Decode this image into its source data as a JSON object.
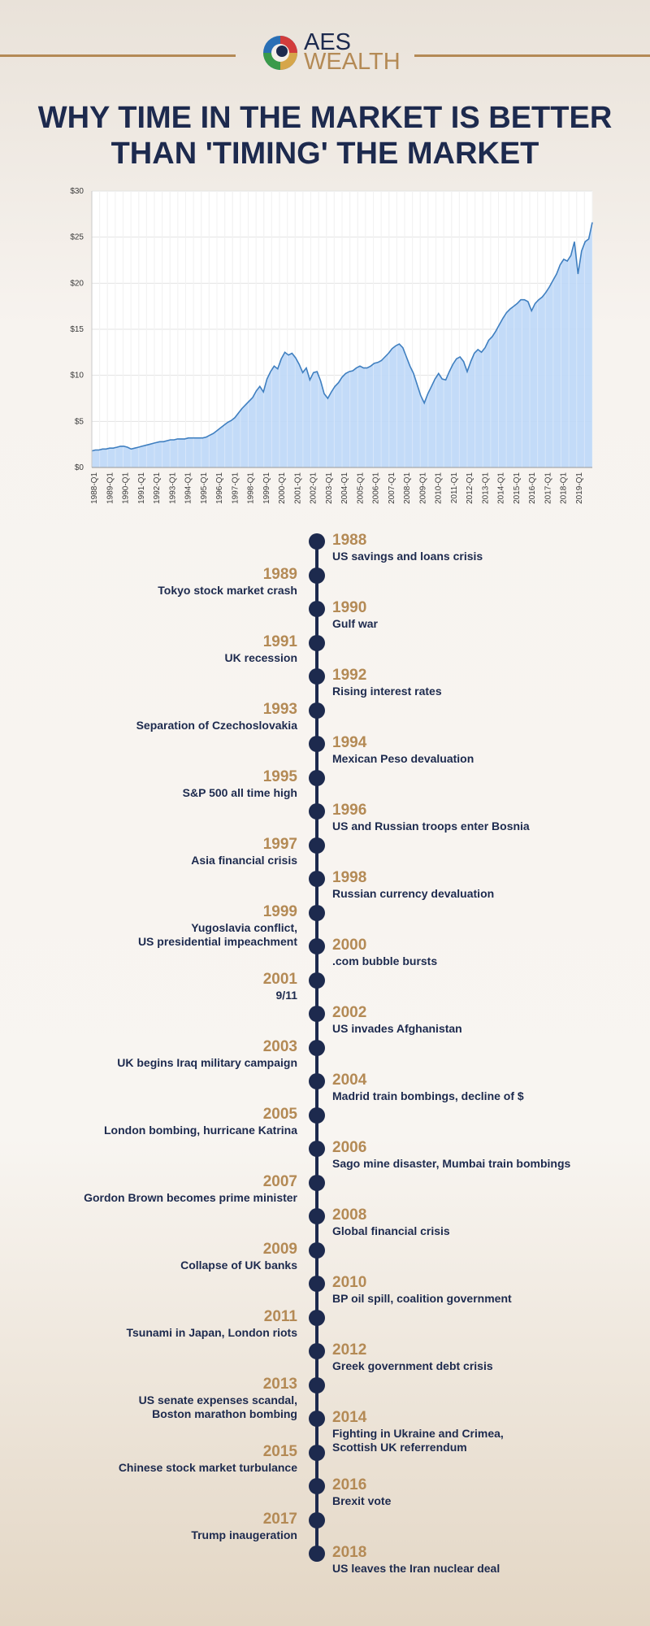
{
  "header": {
    "brand_top": "AES",
    "brand_bottom": "WEALTH",
    "title_line1": "WHY TIME IN THE MARKET IS BETTER",
    "title_line2": "THAN 'TIMING' THE MARKET"
  },
  "colors": {
    "navy": "#1d2a4e",
    "gold": "#b48a55",
    "line": "#3f7fc0",
    "fill": "#bcd7f7"
  },
  "chart_data": {
    "type": "area",
    "title": "",
    "xlabel": "",
    "ylabel": "",
    "ylim": [
      0,
      30
    ],
    "yticks": [
      "$0",
      "$5",
      "$10",
      "$15",
      "$20",
      "$25",
      "$30"
    ],
    "grid": true,
    "x_labels": [
      "1988-Q1",
      "1989-Q1",
      "1990-Q1",
      "1991-Q1",
      "1992-Q1",
      "1993-Q1",
      "1994-Q1",
      "1995-Q1",
      "1996-Q1",
      "1997-Q1",
      "1998-Q1",
      "1999-Q1",
      "2000-Q1",
      "2001-Q1",
      "2002-Q1",
      "2003-Q1",
      "2004-Q1",
      "2005-Q1",
      "2006-Q1",
      "2007-Q1",
      "2008-Q1",
      "2009-Q1",
      "2010-Q1",
      "2011-Q1",
      "2012-Q1",
      "2013-Q1",
      "2014-Q1",
      "2015-Q1",
      "2016-Q1",
      "2017-Q1",
      "2018-Q1",
      "2019-Q1"
    ],
    "series": [
      {
        "values": [
          1.8,
          1.9,
          1.9,
          2.0,
          2.0,
          2.1,
          2.1,
          2.2,
          2.3,
          2.3,
          2.2,
          2.0,
          2.1,
          2.2,
          2.3,
          2.4,
          2.5,
          2.6,
          2.7,
          2.8,
          2.8,
          2.9,
          3.0,
          3.0,
          3.1,
          3.1,
          3.1,
          3.2,
          3.2,
          3.2,
          3.2,
          3.2,
          3.3,
          3.5,
          3.7,
          4.0,
          4.3,
          4.6,
          4.9,
          5.1,
          5.4,
          5.9,
          6.4,
          6.8,
          7.2,
          7.6,
          8.3,
          8.8,
          8.2,
          9.6,
          10.4,
          11.0,
          10.7,
          11.8,
          12.5,
          12.2,
          12.4,
          11.9,
          11.2,
          10.3,
          10.8,
          9.5,
          10.3,
          10.4,
          9.4,
          8.0,
          7.5,
          8.2,
          8.8,
          9.2,
          9.8,
          10.2,
          10.4,
          10.5,
          10.8,
          11.0,
          10.8,
          10.8,
          11.0,
          11.3,
          11.4,
          11.6,
          12.0,
          12.4,
          12.9,
          13.2,
          13.4,
          13.0,
          12.0,
          11.0,
          10.2,
          9.0,
          7.8,
          7.0,
          8.0,
          8.8,
          9.6,
          10.2,
          9.6,
          9.5,
          10.4,
          11.2,
          11.8,
          12.0,
          11.5,
          10.4,
          11.5,
          12.4,
          12.8,
          12.5,
          13.0,
          13.8,
          14.2,
          14.8,
          15.5,
          16.2,
          16.8,
          17.2,
          17.5,
          17.8,
          18.2,
          18.2,
          18.0,
          17.0,
          17.8,
          18.2,
          18.5,
          19.0,
          19.6,
          20.3,
          21.0,
          22.0,
          22.6,
          22.4,
          23.0,
          24.5,
          21.0,
          23.5,
          24.5,
          24.8,
          26.6
        ]
      }
    ]
  },
  "timeline": {
    "events": [
      {
        "year": "1988",
        "desc": [
          "US savings and loans crisis"
        ],
        "side": "right"
      },
      {
        "year": "1989",
        "desc": [
          "Tokyo stock market crash"
        ],
        "side": "left"
      },
      {
        "year": "1990",
        "desc": [
          "Gulf war"
        ],
        "side": "right"
      },
      {
        "year": "1991",
        "desc": [
          "UK recession"
        ],
        "side": "left"
      },
      {
        "year": "1992",
        "desc": [
          "Rising interest rates"
        ],
        "side": "right"
      },
      {
        "year": "1993",
        "desc": [
          "Separation of Czechoslovakia"
        ],
        "side": "left"
      },
      {
        "year": "1994",
        "desc": [
          "Mexican Peso devaluation"
        ],
        "side": "right"
      },
      {
        "year": "1995",
        "desc": [
          "S&P 500 all time high"
        ],
        "side": "left"
      },
      {
        "year": "1996",
        "desc": [
          "US and Russian troops enter Bosnia"
        ],
        "side": "right"
      },
      {
        "year": "1997",
        "desc": [
          "Asia financial crisis"
        ],
        "side": "left"
      },
      {
        "year": "1998",
        "desc": [
          "Russian currency devaluation"
        ],
        "side": "right"
      },
      {
        "year": "1999",
        "desc": [
          "Yugoslavia conflict,",
          "US presidential impeachment"
        ],
        "side": "left"
      },
      {
        "year": "2000",
        "desc": [
          ".com bubble bursts"
        ],
        "side": "right"
      },
      {
        "year": "2001",
        "desc": [
          "9/11"
        ],
        "side": "left"
      },
      {
        "year": "2002",
        "desc": [
          "US invades Afghanistan"
        ],
        "side": "right"
      },
      {
        "year": "2003",
        "desc": [
          "UK begins Iraq military campaign"
        ],
        "side": "left"
      },
      {
        "year": "2004",
        "desc": [
          "Madrid train bombings, decline of $"
        ],
        "side": "right"
      },
      {
        "year": "2005",
        "desc": [
          "London bombing, hurricane Katrina"
        ],
        "side": "left"
      },
      {
        "year": "2006",
        "desc": [
          "Sago mine disaster, Mumbai train bombings"
        ],
        "side": "right"
      },
      {
        "year": "2007",
        "desc": [
          "Gordon Brown becomes prime minister"
        ],
        "side": "left"
      },
      {
        "year": "2008",
        "desc": [
          "Global financial crisis"
        ],
        "side": "right"
      },
      {
        "year": "2009",
        "desc": [
          "Collapse of UK banks"
        ],
        "side": "left"
      },
      {
        "year": "2010",
        "desc": [
          "BP oil spill, coalition government"
        ],
        "side": "right"
      },
      {
        "year": "2011",
        "desc": [
          "Tsunami in Japan, London riots"
        ],
        "side": "left"
      },
      {
        "year": "2012",
        "desc": [
          "Greek government debt crisis"
        ],
        "side": "right"
      },
      {
        "year": "2013",
        "desc": [
          "US senate expenses scandal,",
          "Boston marathon bombing"
        ],
        "side": "left"
      },
      {
        "year": "2014",
        "desc": [
          "Fighting in Ukraine and Crimea,",
          "Scottish UK referrendum"
        ],
        "side": "right"
      },
      {
        "year": "2015",
        "desc": [
          "Chinese stock market turbulance"
        ],
        "side": "left"
      },
      {
        "year": "2016",
        "desc": [
          "Brexit vote"
        ],
        "side": "right"
      },
      {
        "year": "2017",
        "desc": [
          "Trump inaugeration"
        ],
        "side": "left"
      },
      {
        "year": "2018",
        "desc": [
          "US leaves the Iran nuclear deal"
        ],
        "side": "right"
      }
    ]
  }
}
